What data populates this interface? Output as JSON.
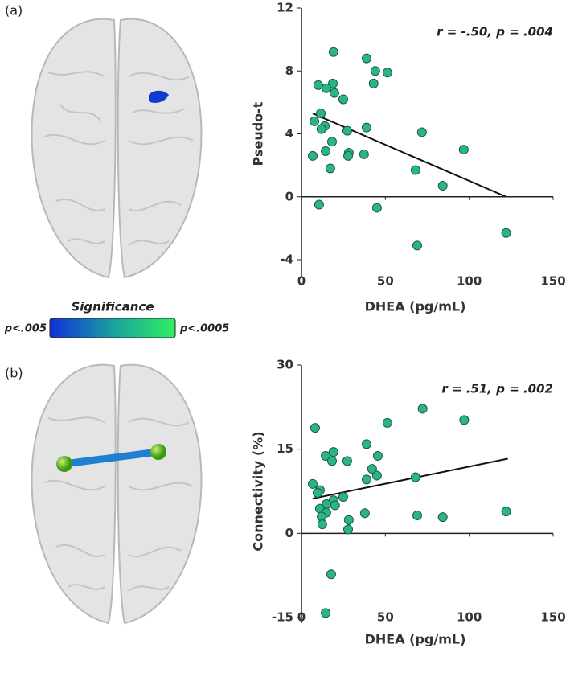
{
  "panel_labels": [
    "(a)",
    "(b)"
  ],
  "colorbar": {
    "title": "Significance",
    "min_label": "p<.005",
    "max_label": "p<.0005"
  },
  "chart_data": [
    {
      "type": "scatter",
      "annotation": "r = -.50, p = .004",
      "xlabel": "DHEA (pg/mL)",
      "ylabel": "Pseudo-t",
      "color": "#2bb585",
      "x": [
        19.1,
        38.8,
        44,
        51.2,
        10,
        18.7,
        14.8,
        19.6,
        43,
        24.9,
        11.5,
        7.7,
        13.9,
        11.9,
        27.3,
        38.8,
        71.8,
        18.2,
        96.7,
        14.4,
        28.2,
        6.7,
        27.8,
        37.3,
        17.2,
        68,
        84.2,
        10.5,
        45,
        122,
        69
      ],
      "values": [
        9.2,
        8.8,
        8.0,
        7.9,
        7.1,
        7.2,
        6.9,
        6.6,
        7.2,
        6.2,
        5.3,
        4.8,
        4.5,
        4.3,
        4.2,
        4.4,
        4.1,
        3.5,
        3.0,
        2.9,
        2.8,
        2.6,
        2.6,
        2.7,
        1.8,
        1.7,
        0.7,
        -0.5,
        -0.7,
        -2.3,
        -3.1
      ],
      "trendline": {
        "x": [
          6.7,
          122
        ],
        "y": [
          5.3,
          0
        ]
      },
      "xlim": [
        0,
        150
      ],
      "xticks": [
        0,
        50,
        100,
        150
      ],
      "ylim": [
        -4,
        12
      ],
      "yticks": [
        -4,
        0,
        4,
        8,
        12
      ]
    },
    {
      "type": "scatter",
      "annotation": "r = .51, p = .002",
      "xlabel": "DHEA (pg/mL)",
      "ylabel": "Connectivity (%)",
      "color": "#2bb585",
      "x": [
        8.1,
        97,
        72.2,
        51.2,
        38.8,
        19.1,
        14.4,
        18.2,
        27.3,
        45.5,
        42.1,
        45,
        38.8,
        68,
        6.7,
        11,
        9.6,
        19.1,
        24.9,
        14.8,
        20,
        11,
        14.8,
        37.8,
        69,
        84.2,
        122,
        12,
        12.4,
        28.2,
        27.8,
        17.7,
        14.4
      ],
      "values": [
        18.8,
        20.2,
        22.2,
        19.7,
        15.9,
        14.5,
        13.8,
        12.9,
        12.9,
        13.8,
        11.5,
        10.3,
        9.6,
        10.0,
        8.8,
        7.7,
        7.2,
        5.9,
        6.5,
        5.2,
        5.0,
        4.4,
        3.7,
        3.6,
        3.2,
        2.9,
        3.9,
        3.0,
        1.6,
        2.4,
        0.7,
        -7.3,
        -14.2
      ],
      "trendline": {
        "x": [
          6.7,
          123
        ],
        "y": [
          6.2,
          13.3
        ]
      },
      "xlim": [
        0,
        150
      ],
      "xticks": [
        0,
        50,
        100,
        150
      ],
      "ylim": [
        -15,
        30
      ],
      "yticks": [
        -15,
        0,
        15,
        30
      ]
    }
  ]
}
